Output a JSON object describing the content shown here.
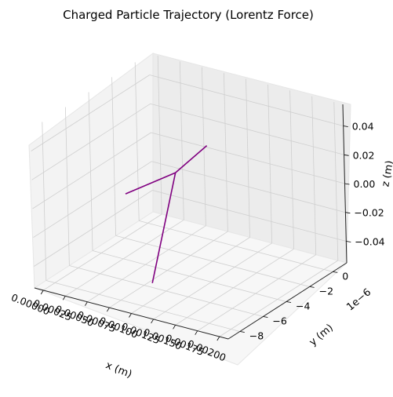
{
  "chart_data": {
    "type": "line",
    "projection": "3d",
    "title": "Charged Particle Trajectory (Lorentz Force)",
    "xlabel": "x (m)",
    "ylabel": "y (m)",
    "zlabel": "z (m)",
    "y_offset_text": "1e−6",
    "xlim": [
      -0.0001,
      0.0021
    ],
    "ylim": [
      -9.0,
      1.2
    ],
    "zlim": [
      -0.055,
      0.055
    ],
    "x_ticks": [
      "0.00000",
      "0.00025",
      "0.00050",
      "0.00075",
      "0.00100",
      "0.00125",
      "0.00150",
      "0.00175",
      "0.00200"
    ],
    "y_ticks": [
      "−8",
      "−6",
      "−4",
      "−2",
      "0"
    ],
    "z_ticks": [
      "−0.04",
      "−0.02",
      "0.00",
      "0.02",
      "0.04"
    ],
    "grid": true,
    "series": [
      {
        "color": "#800080",
        "segments": [
          [
            [
              5e-05,
              -2.2,
              -0.0225
            ],
            [
              0.0006,
              -2.0,
              0.0
            ],
            [
              0.0011,
              -3.0,
              0.032
            ]
          ],
          [
            [
              0.0006,
              -2.0,
              0.0
            ],
            [
              0.0011,
              -7.9,
              -0.038
            ]
          ]
        ]
      }
    ]
  }
}
